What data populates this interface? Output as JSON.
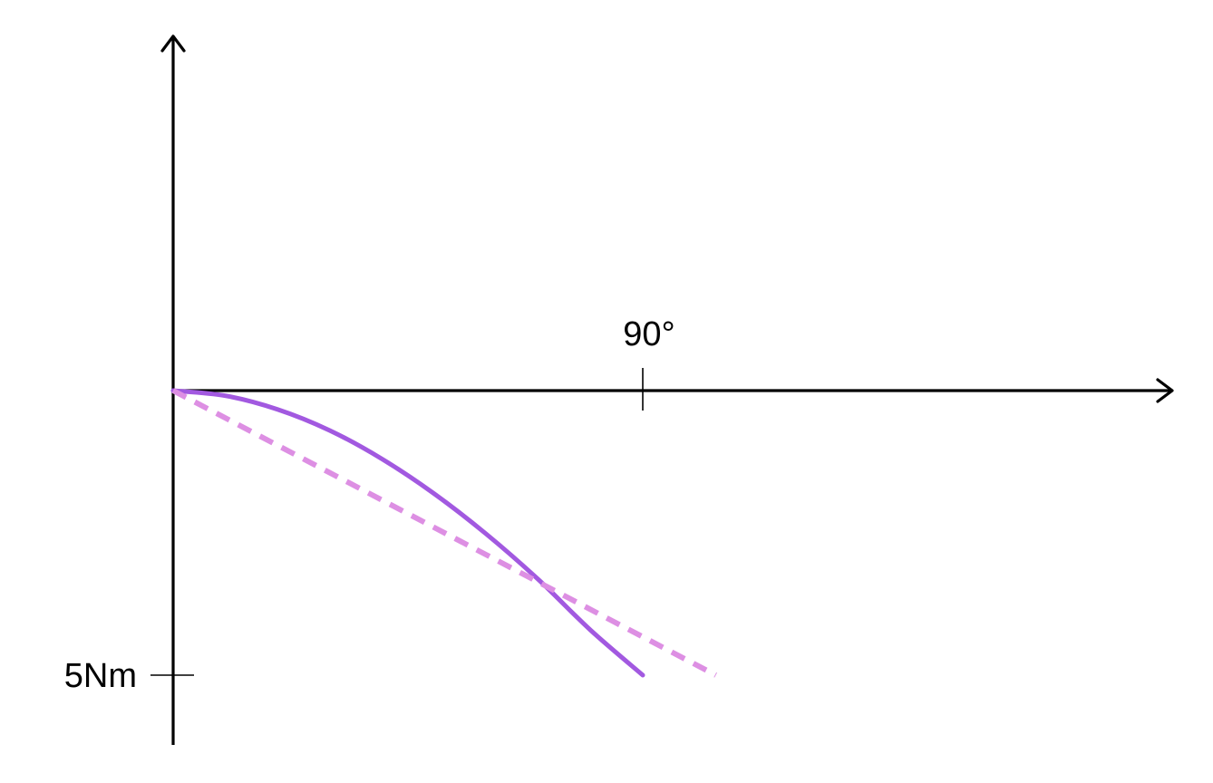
{
  "chart_data": {
    "type": "line",
    "x_ticks": [
      {
        "value": 90,
        "label": "90°"
      }
    ],
    "y_ticks": [
      {
        "value": -5,
        "label": "5Nm"
      }
    ],
    "series": [
      {
        "style": "solid",
        "color": "#a259e0",
        "x": [
          0,
          10,
          20,
          30,
          40,
          50,
          60,
          70,
          80,
          90
        ],
        "y": [
          0,
          -0.09,
          -0.33,
          -0.7,
          -1.2,
          -1.81,
          -2.52,
          -3.32,
          -4.21,
          -5.0
        ]
      },
      {
        "style": "dashed",
        "color": "#dd8fe3",
        "x": [
          0,
          104
        ],
        "y": [
          0,
          -5.0
        ]
      }
    ]
  }
}
